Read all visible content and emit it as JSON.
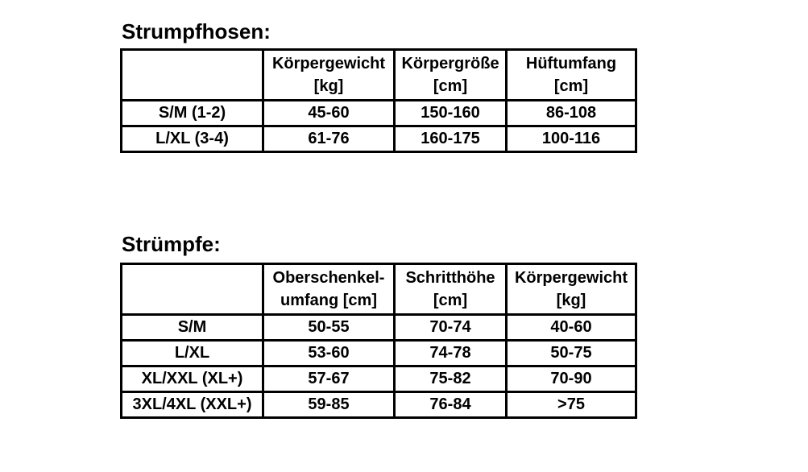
{
  "page": {
    "background_color": "#ffffff",
    "text_color": "#000000",
    "border_color": "#000000"
  },
  "tables": [
    {
      "title": "Strumpfhosen:",
      "columns": [
        {
          "line1": "",
          "line2": ""
        },
        {
          "line1": "Körpergewicht",
          "line2": "[kg]"
        },
        {
          "line1": "Körpergröße",
          "line2": "[cm]"
        },
        {
          "line1": "Hüftumfang",
          "line2": "[cm]"
        }
      ],
      "rows": [
        {
          "label": "S/M (1-2)",
          "values": [
            "45-60",
            "150-160",
            "86-108"
          ]
        },
        {
          "label": "L/XL (3-4)",
          "values": [
            "61-76",
            "160-175",
            "100-116"
          ]
        }
      ]
    },
    {
      "title": "Strümpfe:",
      "columns": [
        {
          "line1": "",
          "line2": ""
        },
        {
          "line1": "Oberschenkel-",
          "line2": "umfang [cm]"
        },
        {
          "line1": "Schritthöhe",
          "line2": "[cm]"
        },
        {
          "line1": "Körpergewicht",
          "line2": "[kg]"
        }
      ],
      "rows": [
        {
          "label": "S/M",
          "values": [
            "50-55",
            "70-74",
            "40-60"
          ]
        },
        {
          "label": "L/XL",
          "values": [
            "53-60",
            "74-78",
            "50-75"
          ]
        },
        {
          "label": "XL/XXL (XL+)",
          "values": [
            "57-67",
            "75-82",
            "70-90"
          ]
        },
        {
          "label": "3XL/4XL (XXL+)",
          "values": [
            "59-85",
            "76-84",
            ">75"
          ]
        }
      ]
    }
  ]
}
